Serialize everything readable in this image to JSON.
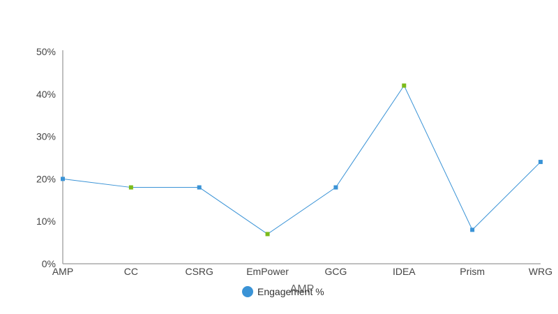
{
  "chart_data": {
    "type": "line",
    "categories": [
      "AMP",
      "CC",
      "CSRG",
      "EmPower",
      "GCG",
      "IDEA",
      "Prism",
      "WRG"
    ],
    "series": [
      {
        "name": "Engagement %",
        "values": [
          20,
          18,
          18,
          7,
          18,
          42,
          8,
          24
        ],
        "color": "#3a93d6",
        "highlight_color": "#7cbb1a",
        "highlighted_indices": [
          1,
          3,
          5
        ]
      }
    ],
    "yticks": [
      "0%",
      "10%",
      "20%",
      "30%",
      "40%",
      "50%"
    ],
    "ylim": [
      0,
      50
    ],
    "xlabel": "AMP",
    "ylabel": "",
    "legend_position": "bottom-center",
    "grid": false,
    "axis_color": "#aaaaaa"
  }
}
